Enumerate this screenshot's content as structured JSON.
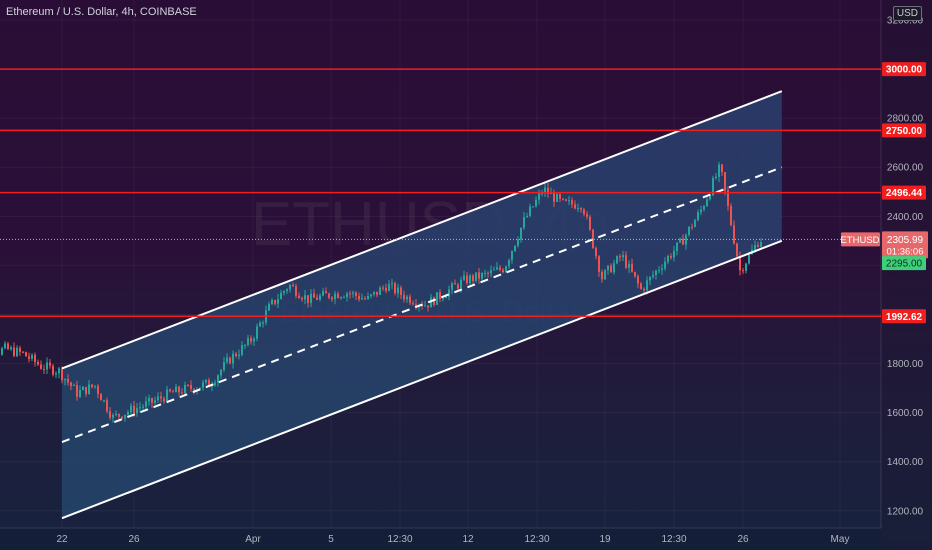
{
  "header": {
    "title": "Ethereum / U.S. Dollar, 4h, COINBASE",
    "currency": "USD",
    "watermark_symbol": "ETHUSD, 4h",
    "watermark_name": "Ethereum / U.S. Dollar"
  },
  "colors": {
    "level_line": "#f01e1e",
    "price_line": "#7fd6a8",
    "channel_fill": "#2a3f6e",
    "up_candle": "#26a69a",
    "down_candle": "#ef5350",
    "axis_text": "#b2b5be",
    "channel_line": "#ffffff"
  },
  "chart_data": {
    "type": "candlestick",
    "symbol": "ETHUSD",
    "interval": "4h",
    "y_axis": {
      "ticks": [
        1200,
        1400,
        1600,
        1800,
        2000,
        2200,
        2400,
        2600,
        2800,
        3000,
        3200
      ],
      "tick_labels": [
        "1200.00",
        "1400.00",
        "1600.00",
        "1800.00",
        "2000.00",
        "2200.00",
        "2400.00",
        "2600.00",
        "2800.00",
        "3000.00",
        "3200.00"
      ],
      "range": [
        1140,
        3340
      ]
    },
    "x_axis": {
      "labels": [
        "22",
        "26",
        "Apr",
        "5",
        "12:30",
        "12",
        "12:30",
        "19",
        "12:30",
        "26",
        "May"
      ],
      "dates": [
        "2021-03-22",
        "2021-03-26",
        "2021-04-01",
        "2021-04-05",
        "2021-04-08 12:30",
        "2021-04-12",
        "2021-04-15 12:30",
        "2021-04-19",
        "2021-04-22 12:30",
        "2021-04-26",
        "2021-05-01"
      ]
    },
    "horizontal_levels": [
      {
        "value": 3000.0,
        "label": "3000.00"
      },
      {
        "value": 2750.0,
        "label": "2750.00"
      },
      {
        "value": 2496.44,
        "label": "2496.44"
      },
      {
        "value": 1992.62,
        "label": "1992.62"
      }
    ],
    "last_price": {
      "value": 2305.99,
      "label": "2305.99",
      "symbol_tag": "ETHUSD",
      "countdown": "01:36:06"
    },
    "alert_price": {
      "value": 2295.0,
      "label": "2295.00"
    },
    "channel": {
      "upper": [
        {
          "x": "2021-03-22",
          "y": 1780
        },
        {
          "x": "2021-04-28",
          "y": 2910
        }
      ],
      "middle": [
        {
          "x": "2021-03-22",
          "y": 1480
        },
        {
          "x": "2021-04-28",
          "y": 2600
        }
      ],
      "lower": [
        {
          "x": "2021-03-22",
          "y": 1170
        },
        {
          "x": "2021-04-28",
          "y": 2300
        }
      ]
    },
    "price_path": [
      {
        "x": "2021-03-17",
        "y": 1800
      },
      {
        "x": "2021-03-18",
        "y": 1830
      },
      {
        "x": "2021-03-19",
        "y": 1860
      },
      {
        "x": "2021-03-20",
        "y": 1840
      },
      {
        "x": "2021-03-21",
        "y": 1790
      },
      {
        "x": "2021-03-22",
        "y": 1770
      },
      {
        "x": "2021-03-23",
        "y": 1680
      },
      {
        "x": "2021-03-24",
        "y": 1710
      },
      {
        "x": "2021-03-25",
        "y": 1580
      },
      {
        "x": "2021-03-26",
        "y": 1610
      },
      {
        "x": "2021-03-27",
        "y": 1640
      },
      {
        "x": "2021-03-28",
        "y": 1680
      },
      {
        "x": "2021-03-29",
        "y": 1700
      },
      {
        "x": "2021-03-30",
        "y": 1720
      },
      {
        "x": "2021-03-31",
        "y": 1820
      },
      {
        "x": "2021-04-01",
        "y": 1890
      },
      {
        "x": "2021-04-02",
        "y": 2030
      },
      {
        "x": "2021-04-03",
        "y": 2120
      },
      {
        "x": "2021-04-04",
        "y": 2060
      },
      {
        "x": "2021-04-05",
        "y": 2080
      },
      {
        "x": "2021-04-06",
        "y": 2090
      },
      {
        "x": "2021-04-07",
        "y": 2060
      },
      {
        "x": "2021-04-08",
        "y": 2120
      },
      {
        "x": "2021-04-09",
        "y": 2070
      },
      {
        "x": "2021-04-10",
        "y": 2040
      },
      {
        "x": "2021-04-11",
        "y": 2090
      },
      {
        "x": "2021-04-12",
        "y": 2140
      },
      {
        "x": "2021-04-13",
        "y": 2160
      },
      {
        "x": "2021-04-14",
        "y": 2190
      },
      {
        "x": "2021-04-15",
        "y": 2380
      },
      {
        "x": "2021-04-16",
        "y": 2510
      },
      {
        "x": "2021-04-17",
        "y": 2450
      },
      {
        "x": "2021-04-18",
        "y": 2450
      },
      {
        "x": "2021-04-19",
        "y": 2150
      },
      {
        "x": "2021-04-20",
        "y": 2240
      },
      {
        "x": "2021-04-21",
        "y": 2100
      },
      {
        "x": "2021-04-22",
        "y": 2200
      },
      {
        "x": "2021-04-23",
        "y": 2290
      },
      {
        "x": "2021-04-24",
        "y": 2420
      },
      {
        "x": "2021-04-25",
        "y": 2600
      },
      {
        "x": "2021-04-26",
        "y": 2180
      },
      {
        "x": "2021-04-27",
        "y": 2306
      }
    ]
  }
}
